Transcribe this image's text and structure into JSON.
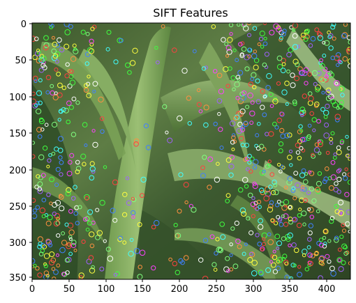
{
  "figure": {
    "title": "SIFT Features",
    "x_ticks": [
      "0",
      "50",
      "100",
      "150",
      "200",
      "250",
      "300",
      "350",
      "400"
    ],
    "y_ticks": [
      "0",
      "50",
      "100",
      "150",
      "200",
      "250",
      "300",
      "350"
    ]
  },
  "image": {
    "subject": "close-up of green plant leaves (corn/maize) with overlaid SIFT keypoint circles",
    "keypoint_colors": [
      "#ff4040",
      "#40ff40",
      "#4080ff",
      "#ffff40",
      "#ff40ff",
      "#40ffff",
      "#ff9040",
      "#a060ff",
      "#ffffff",
      "#80ff80"
    ]
  }
}
